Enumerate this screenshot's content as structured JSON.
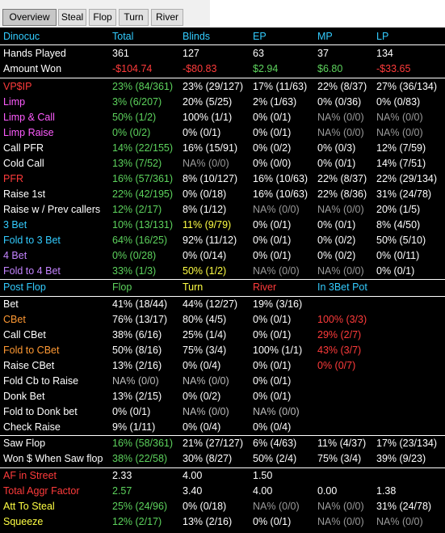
{
  "tabs": [
    "Overview",
    "Steal",
    "Flop",
    "Turn",
    "River"
  ],
  "header": [
    "Dinocuc",
    "Total",
    "Blinds",
    "EP",
    "MP",
    "LP"
  ],
  "preflop_rows": [
    {
      "label": "Hands Played",
      "values": [
        "361",
        "127",
        "63",
        "37",
        "134"
      ]
    },
    {
      "label": "Amount Won",
      "values": [
        "-$104.74",
        "-$80.83",
        "$2.94",
        "$6.80",
        "-$33.65"
      ]
    },
    {
      "label": "VP$IP",
      "values": [
        "23% (84/361)",
        "23% (29/127)",
        "17% (11/63)",
        "22% (8/37)",
        "27% (36/134)"
      ]
    },
    {
      "label": "Limp",
      "values": [
        "3% (6/207)",
        "20% (5/25)",
        "2% (1/63)",
        "0% (0/36)",
        "0% (0/83)"
      ]
    },
    {
      "label": "Limp & Call",
      "values": [
        "50% (1/2)",
        "100% (1/1)",
        "0% (0/1)",
        "NA% (0/0)",
        "NA% (0/0)"
      ]
    },
    {
      "label": "Limp Raise",
      "values": [
        "0% (0/2)",
        "0% (0/1)",
        "0% (0/1)",
        "NA% (0/0)",
        "NA% (0/0)"
      ]
    },
    {
      "label": "Call PFR",
      "values": [
        "14% (22/155)",
        "16% (15/91)",
        "0% (0/2)",
        "0% (0/3)",
        "12% (7/59)"
      ]
    },
    {
      "label": "Cold Call",
      "values": [
        "13% (7/52)",
        "NA% (0/0)",
        "0% (0/0)",
        "0% (0/1)",
        "14% (7/51)"
      ]
    },
    {
      "label": "PFR",
      "values": [
        "16% (57/361)",
        "8% (10/127)",
        "16% (10/63)",
        "22% (8/37)",
        "22% (29/134)"
      ]
    },
    {
      "label": "Raise 1st",
      "values": [
        "22% (42/195)",
        "0% (0/18)",
        "16% (10/63)",
        "22% (8/36)",
        "31% (24/78)"
      ]
    },
    {
      "label": "Raise w / Prev callers",
      "values": [
        "12% (2/17)",
        "8% (1/12)",
        "NA% (0/0)",
        "NA% (0/0)",
        "20% (1/5)"
      ]
    },
    {
      "label": "3 Bet",
      "values": [
        "10% (13/131)",
        "11% (9/79)",
        "0% (0/1)",
        "0% (0/1)",
        "8% (4/50)"
      ]
    },
    {
      "label": "Fold to 3 Bet",
      "values": [
        "64% (16/25)",
        "92% (11/12)",
        "0% (0/1)",
        "0% (0/2)",
        "50% (5/10)"
      ]
    },
    {
      "label": "4 Bet",
      "values": [
        "0% (0/28)",
        "0% (0/14)",
        "0% (0/1)",
        "0% (0/2)",
        "0% (0/11)"
      ]
    },
    {
      "label": "Fold to 4 Bet",
      "values": [
        "33% (1/3)",
        "50% (1/2)",
        "NA% (0/0)",
        "NA% (0/0)",
        "0% (0/1)"
      ]
    }
  ],
  "postflop_header": [
    "Post Flop",
    "Flop",
    "Turn",
    "River",
    "In 3Bet Pot"
  ],
  "postflop_rows": [
    {
      "label": "Bet",
      "values": [
        "41% (18/44)",
        "44% (12/27)",
        "19% (3/16)",
        ""
      ]
    },
    {
      "label": "CBet",
      "values": [
        "76% (13/17)",
        "80% (4/5)",
        "0% (0/1)",
        "100% (3/3)"
      ]
    },
    {
      "label": "Call CBet",
      "values": [
        "38% (6/16)",
        "25% (1/4)",
        "0% (0/1)",
        "29% (2/7)"
      ]
    },
    {
      "label": "Fold to CBet",
      "values": [
        "50% (8/16)",
        "75% (3/4)",
        "100% (1/1)",
        "43% (3/7)"
      ]
    },
    {
      "label": "Raise CBet",
      "values": [
        "13% (2/16)",
        "0% (0/4)",
        "0% (0/1)",
        "0% (0/7)"
      ]
    },
    {
      "label": "Fold Cb to Raise",
      "values": [
        "NA% (0/0)",
        "NA% (0/0)",
        "0% (0/1)",
        ""
      ]
    },
    {
      "label": "Donk Bet",
      "values": [
        "13% (2/15)",
        "0% (0/2)",
        "0% (0/1)",
        ""
      ]
    },
    {
      "label": "Fold to Donk bet",
      "values": [
        "0% (0/1)",
        "NA% (0/0)",
        "NA% (0/0)",
        ""
      ]
    },
    {
      "label": "Check Raise",
      "values": [
        "9% (1/11)",
        "0% (0/4)",
        "0% (0/4)",
        ""
      ]
    }
  ],
  "bottom_rows": [
    {
      "label": "Saw Flop",
      "values": [
        "16% (58/361)",
        "21% (27/127)",
        "6% (4/63)",
        "11% (4/37)",
        "17% (23/134)"
      ]
    },
    {
      "label": "Won $ When Saw flop",
      "values": [
        "38% (22/58)",
        "30% (8/27)",
        "50% (2/4)",
        "75% (3/4)",
        "39% (9/23)"
      ]
    },
    {
      "label": "AF in Street",
      "values": [
        "2.33",
        "4.00",
        "1.50",
        "",
        ""
      ]
    },
    {
      "label": "Total Aggr Factor",
      "values": [
        "2.57",
        "3.40",
        "4.00",
        "0.00",
        "1.38"
      ]
    },
    {
      "label": "Att To Steal",
      "values": [
        "25% (24/96)",
        "0% (0/18)",
        "NA% (0/0)",
        "NA% (0/0)",
        "31% (24/78)"
      ]
    },
    {
      "label": "Squeeze",
      "values": [
        "12% (2/17)",
        "13% (2/16)",
        "0% (0/1)",
        "NA% (0/0)",
        "NA% (0/0)"
      ]
    }
  ],
  "colors": {
    "background": "#000000",
    "white": "#ffffff",
    "green": "#5dd35d",
    "red": "#ff3b3b",
    "pink": "#ff5cff",
    "cyan": "#33ccff",
    "yellow": "#ffff44",
    "orange": "#ff9933",
    "purple": "#c484ff",
    "gray": "#9a9a9a"
  }
}
